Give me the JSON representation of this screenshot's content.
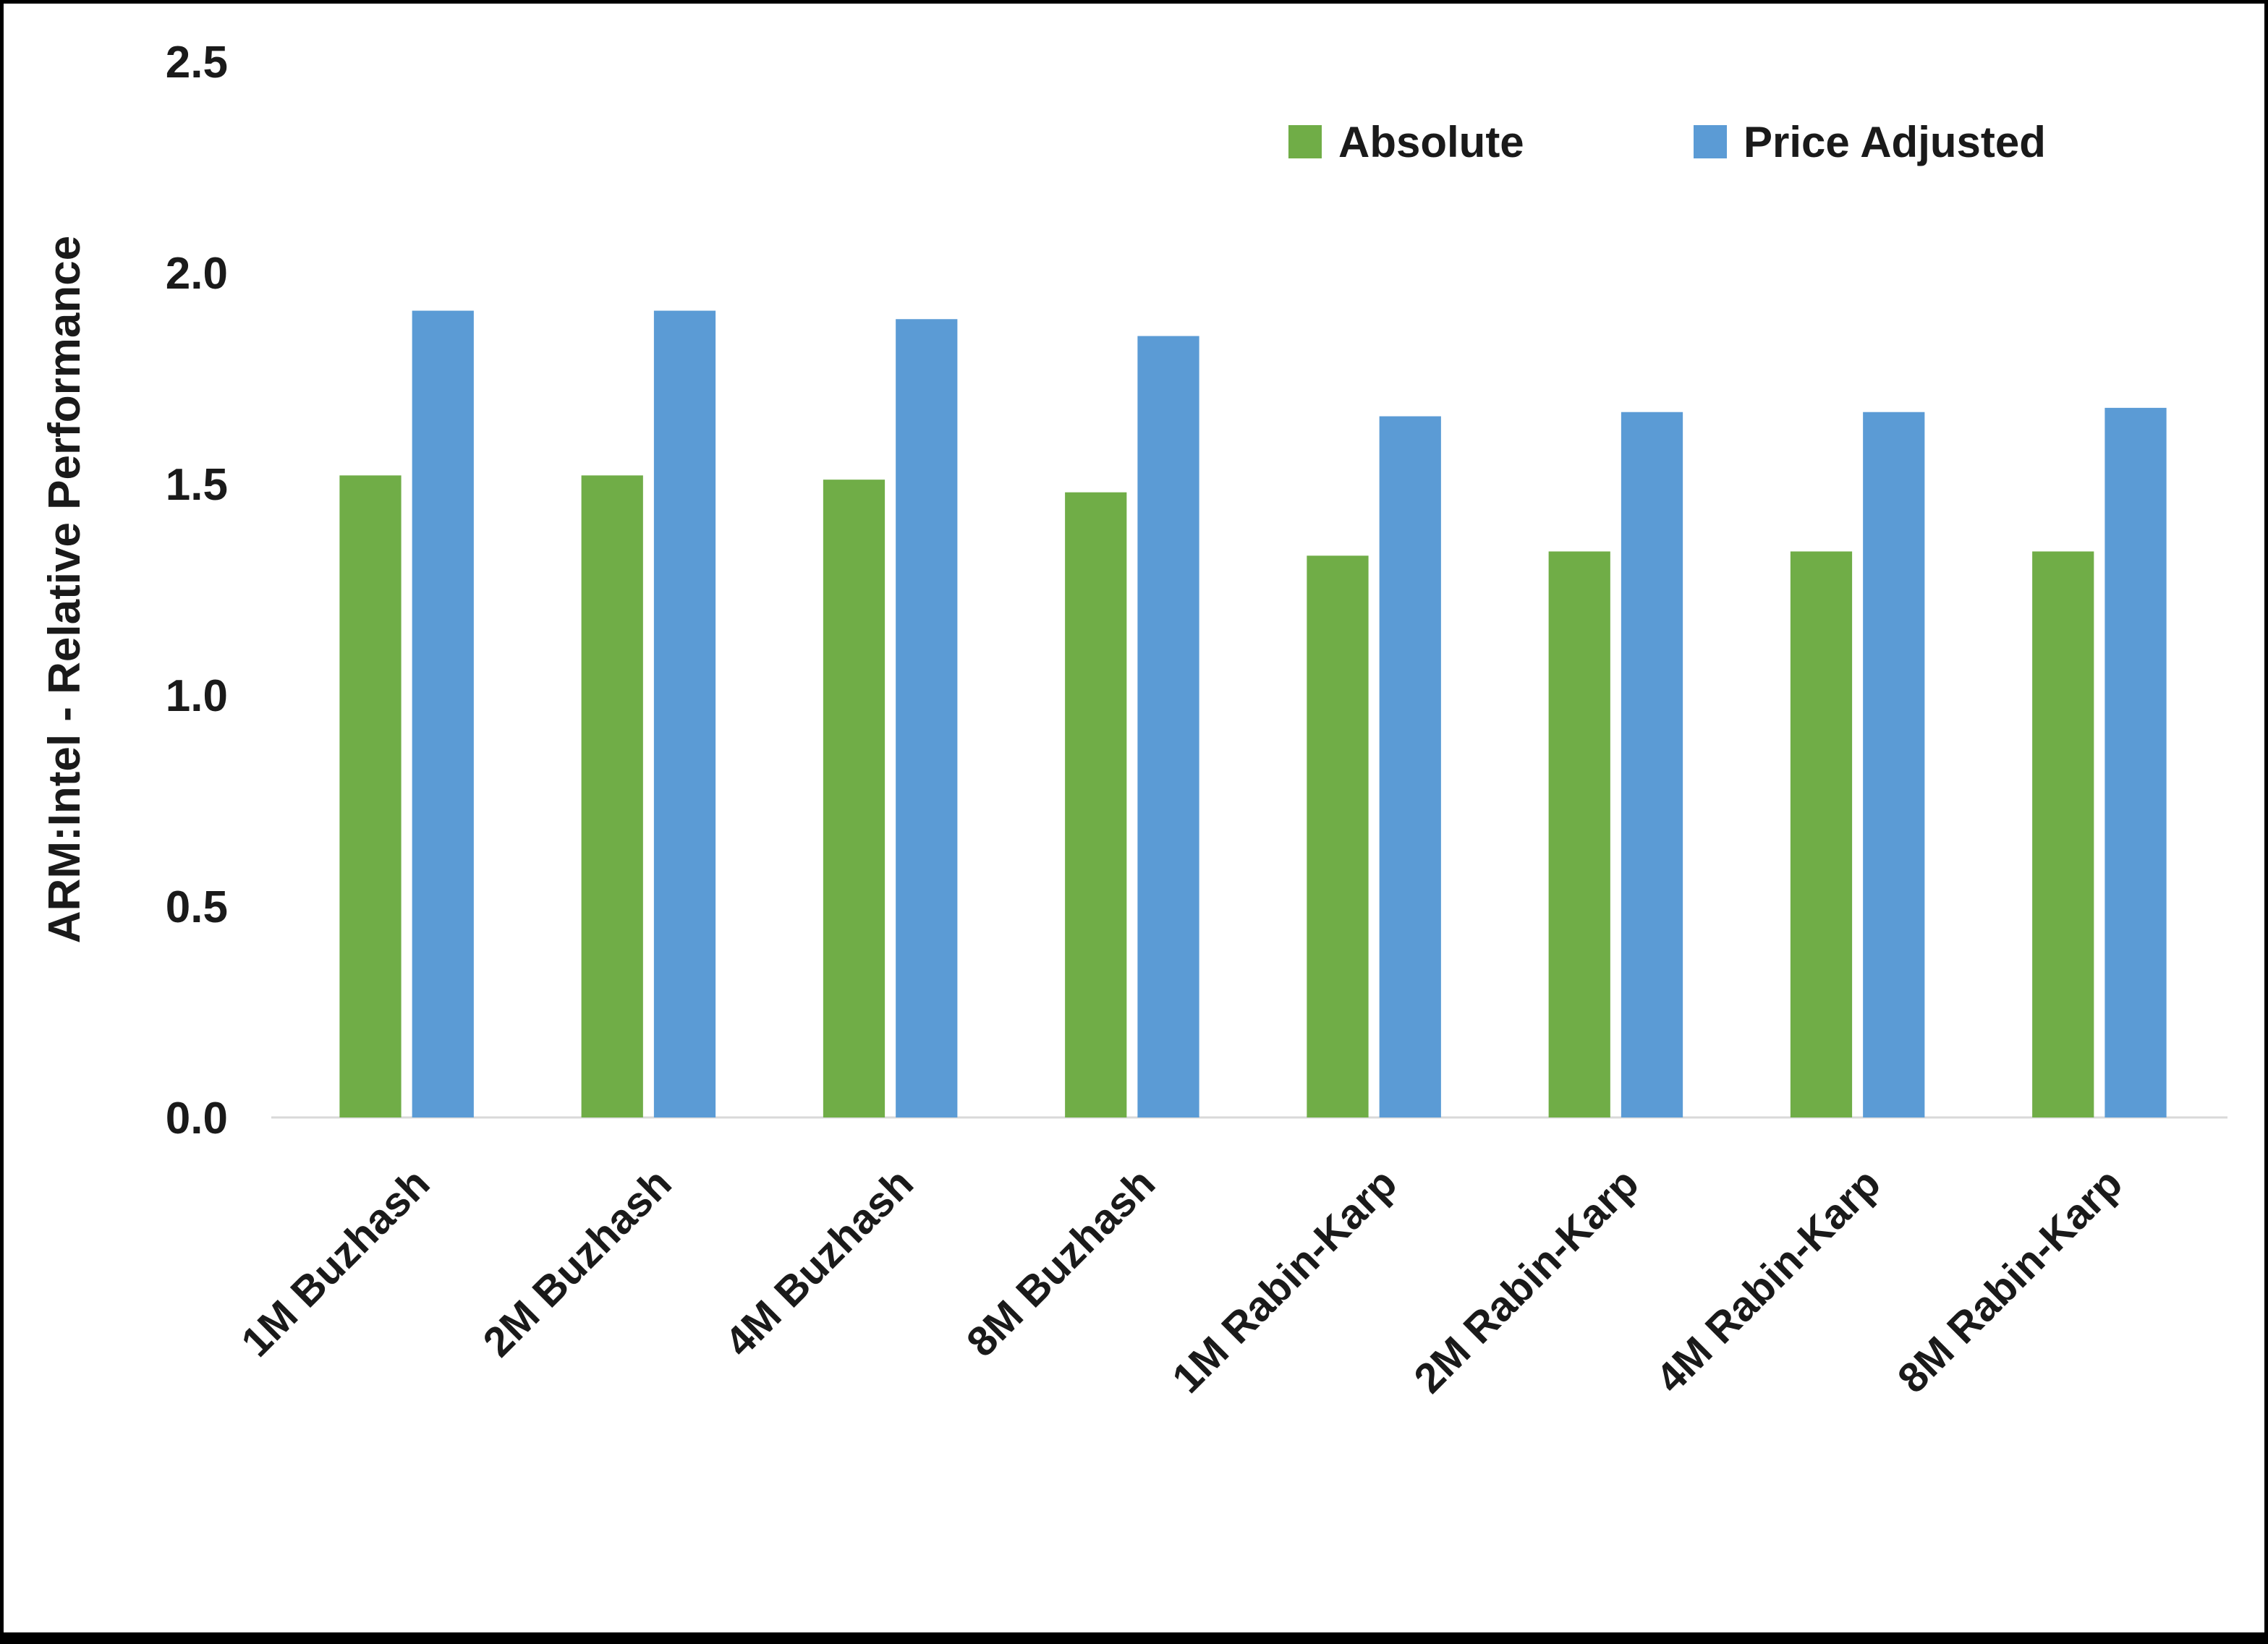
{
  "chart_data": {
    "type": "bar",
    "title": "",
    "xlabel": "",
    "ylabel": "ARM:Intel - Relative Performance",
    "ylim": [
      0.0,
      2.5
    ],
    "yticks": [
      "0.0",
      "0.5",
      "1.0",
      "1.5",
      "2.0",
      "2.5"
    ],
    "ytick_values": [
      0.0,
      0.5,
      1.0,
      1.5,
      2.0,
      2.5
    ],
    "grid": false,
    "legend_position": "top-right",
    "categories": [
      "1M Buzhash",
      "2M Buzhash",
      "4M Buzhash",
      "8M Buzhash",
      "1M Rabin-Karp",
      "2M Rabin-Karp",
      "4M Rabin-Karp",
      "8M Rabin-Karp"
    ],
    "series": [
      {
        "name": "Absolute",
        "color": "#70AD47",
        "values": [
          1.52,
          1.52,
          1.51,
          1.48,
          1.33,
          1.34,
          1.34,
          1.34
        ]
      },
      {
        "name": "Price Adjusted",
        "color": "#5B9BD5",
        "values": [
          1.91,
          1.91,
          1.89,
          1.85,
          1.66,
          1.67,
          1.67,
          1.68
        ]
      }
    ],
    "colors": {
      "axis_line": "#d9d9d9",
      "text": "#1a1a1a",
      "background": "#ffffff"
    }
  }
}
